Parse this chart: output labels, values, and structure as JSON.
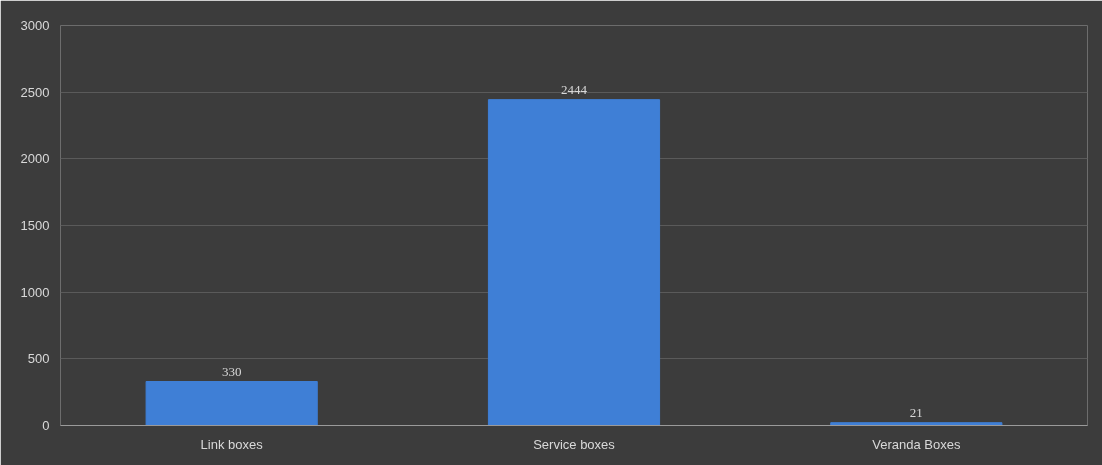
{
  "chart_data": {
    "type": "bar",
    "categories": [
      "Link boxes",
      "Service boxes",
      "Veranda Boxes"
    ],
    "values": [
      330,
      2444,
      21
    ],
    "color": "#3f7fd6",
    "ylim": [
      0,
      3000
    ],
    "yticks": [
      0,
      500,
      1000,
      1500,
      2000,
      2500,
      3000
    ],
    "grid": "y",
    "data_labels": true
  }
}
